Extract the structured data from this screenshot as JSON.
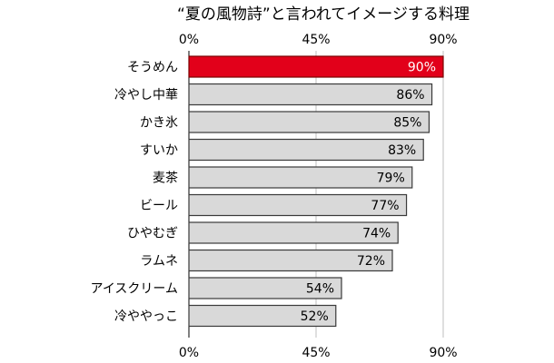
{
  "chart_data": {
    "type": "bar",
    "orientation": "horizontal",
    "title": "“夏の風物詩”と言われてイメージする料理",
    "categories": [
      "そうめん",
      "冷やし中華",
      "かき氷",
      "すいか",
      "麦茶",
      "ビール",
      "ひやむぎ",
      "ラムネ",
      "アイスクリーム",
      "冷ややっこ"
    ],
    "values": [
      90,
      86,
      85,
      83,
      79,
      77,
      74,
      72,
      54,
      52
    ],
    "value_labels": [
      "90%",
      "86%",
      "85%",
      "83%",
      "79%",
      "77%",
      "74%",
      "72%",
      "54%",
      "52%"
    ],
    "xlim": [
      0,
      90
    ],
    "tick_values": [
      0,
      45,
      90
    ],
    "tick_labels": [
      "0%",
      "45%",
      "90%"
    ],
    "axis_position": "top-and-bottom",
    "grid": true,
    "highlight_index": 0,
    "colors": {
      "highlight_bar": "#e2001a",
      "highlight_border": "#7a0000",
      "bar": "#d9d9d9",
      "bar_border": "#3a3a3a",
      "highlight_label": "#ffffff",
      "label": "#000000",
      "gridline": "#bfbfbf",
      "axis": "#000000"
    }
  }
}
